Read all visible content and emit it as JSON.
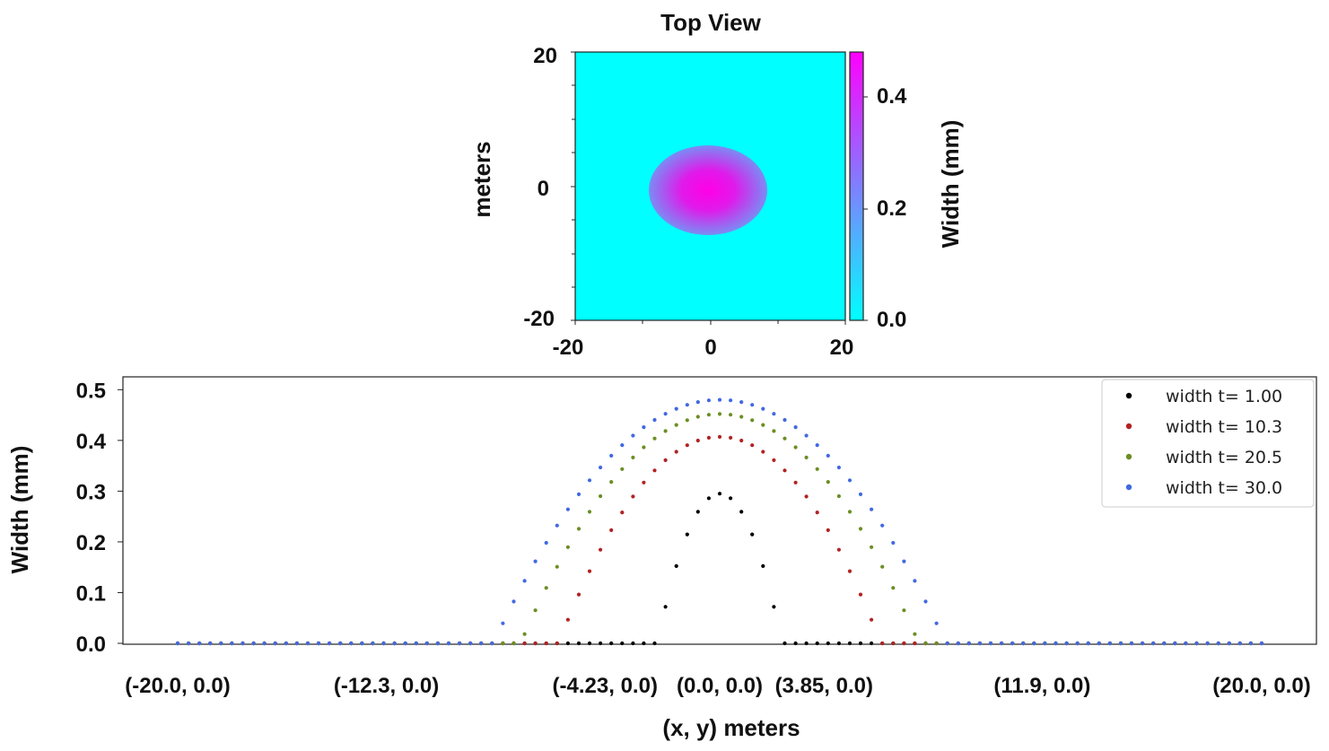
{
  "colors": {
    "background": "#00FFFF",
    "spot": "#FF00E6",
    "series": [
      "#000000",
      "#B22222",
      "#6B8E23",
      "#4169E1"
    ]
  },
  "chart_data": [
    {
      "type": "heatmap",
      "title": "Top View",
      "xlabel": "",
      "ylabel": "meters",
      "xlim": [
        -20,
        20
      ],
      "ylim": [
        -20,
        20
      ],
      "x_ticks": [
        "-20",
        "0",
        "20"
      ],
      "y_ticks": [
        "20",
        "0",
        "-20"
      ],
      "spot": {
        "center": [
          0,
          0
        ],
        "semi_axis_x": 8.3,
        "semi_axis_y": 6.5,
        "peak": 0.48
      },
      "colorbar": {
        "label": "Width (mm)",
        "min": 0,
        "max": 0.48,
        "ticks": [
          "0.4",
          "0.2",
          "0.0"
        ],
        "tick_values": [
          0.4,
          0.2,
          0.0
        ]
      }
    },
    {
      "type": "scatter",
      "xlabel": "(x, y) meters",
      "ylabel": "Width (mm)",
      "xlim": [
        -20,
        20
      ],
      "ylim": [
        0,
        0.52
      ],
      "y_ticks": [
        0.0,
        0.1,
        0.2,
        0.3,
        0.4,
        0.5
      ],
      "y_tick_labels": [
        "0.0",
        "0.1",
        "0.2",
        "0.3",
        "0.4",
        "0.5"
      ],
      "x_tick_labels": [
        "(-20.0, 0.0)",
        "(-12.3, 0.0)",
        "(-4.23, 0.0)",
        "(0.0, 0.0)",
        "(3.85, 0.0)",
        "(11.9, 0.0)",
        "(20.0, 0.0)"
      ],
      "x_tick_values": [
        -20.0,
        -12.3,
        -4.23,
        0.0,
        3.85,
        11.9,
        20.0
      ],
      "legend_position": "top-right",
      "sample_spacing": 0.4,
      "series": [
        {
          "name": "width t= 1.00",
          "color": "#000000",
          "peak": 0.295,
          "half_width": 2.3
        },
        {
          "name": "width t= 10.3",
          "color": "#B22222",
          "peak": 0.407,
          "half_width": 5.95
        },
        {
          "name": "width t= 20.5",
          "color": "#6B8E23",
          "peak": 0.452,
          "half_width": 7.35
        },
        {
          "name": "width t= 30.0",
          "color": "#4169E1",
          "peak": 0.48,
          "half_width": 8.35
        }
      ]
    }
  ]
}
